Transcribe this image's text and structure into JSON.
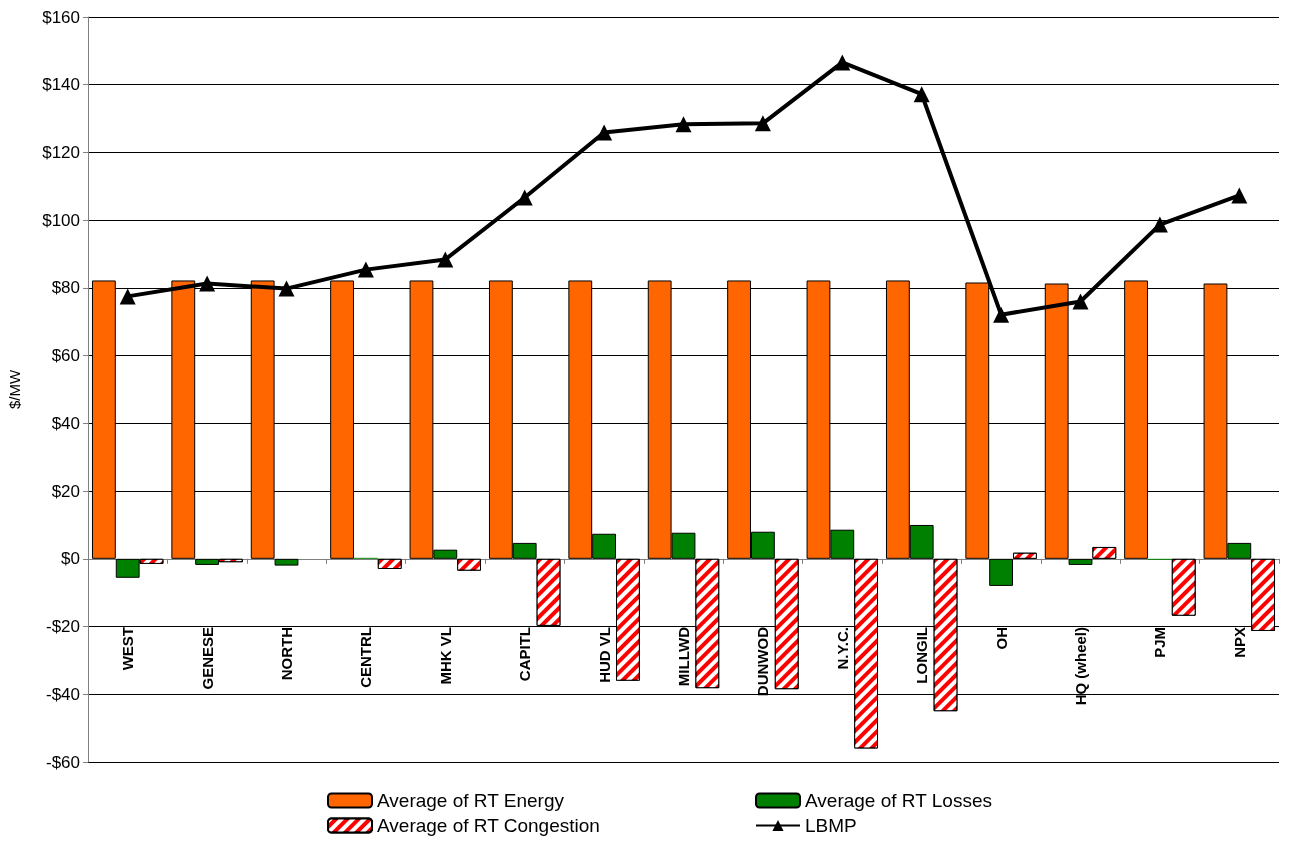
{
  "chart_data": {
    "type": "bar",
    "ylabel": "$/MW",
    "categories": [
      "WEST",
      "GENESE",
      "NORTH",
      "CENTRL",
      "MHK VL",
      "CAPITL",
      "HUD VL",
      "MILLWD",
      "DUNWOD",
      "N.Y.C.",
      "LONGIL",
      "OH",
      "HQ (wheel)",
      "PJM",
      "NPX"
    ],
    "series": [
      {
        "name": "Average of RT Energy",
        "color": "#ff6600",
        "values": [
          82.2,
          82.2,
          82.2,
          82.2,
          82.2,
          82.2,
          82.2,
          82.2,
          82.2,
          82.2,
          82.2,
          81.6,
          81.3,
          82.2,
          81.3
        ]
      },
      {
        "name": "Average of RT Losses",
        "color": "#008000",
        "values": [
          -5.6,
          -1.8,
          -2,
          0.3,
          2.7,
          4.7,
          7.4,
          7.7,
          8,
          8.6,
          10,
          -8,
          -1.8,
          -0.3,
          4.7
        ]
      },
      {
        "name": "Average of RT Congestion",
        "color": "#ff0000",
        "values": [
          -1.5,
          -1,
          0,
          -3,
          -3.5,
          -19.8,
          -36,
          -38.2,
          -38.5,
          -56,
          -45,
          1.8,
          3.5,
          -16.8,
          -21.3
        ]
      },
      {
        "name": "LBMP",
        "color": "#000000",
        "type": "line",
        "marker": "triangle",
        "values": [
          77.5,
          81.3,
          79.8,
          85.4,
          88.4,
          106.7,
          125.9,
          128.3,
          128.6,
          146.6,
          137.2,
          72.1,
          76,
          98.7,
          107.3
        ]
      }
    ],
    "ylim": [
      -60,
      160
    ],
    "yticks": [
      {
        "value": -60,
        "label": "-$60"
      },
      {
        "value": -40,
        "label": "-$40"
      },
      {
        "value": -20,
        "label": "-$20"
      },
      {
        "value": 0,
        "label": "$0"
      },
      {
        "value": 20,
        "label": "$20"
      },
      {
        "value": 40,
        "label": "$40"
      },
      {
        "value": 60,
        "label": "$60"
      },
      {
        "value": 80,
        "label": "$80"
      },
      {
        "value": 100,
        "label": "$100"
      },
      {
        "value": 120,
        "label": "$120"
      },
      {
        "value": 140,
        "label": "$140"
      },
      {
        "value": 160,
        "label": "$160"
      }
    ],
    "grid": "y",
    "legend": "bottom"
  }
}
